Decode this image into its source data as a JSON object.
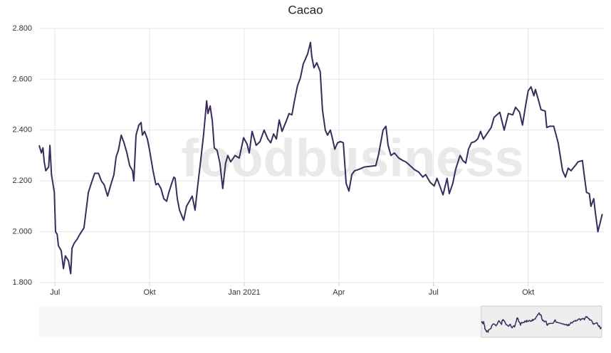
{
  "chart_data": {
    "type": "line",
    "title": "Cacao",
    "watermark": "foodbusiness",
    "x": [
      6.5,
      6.57,
      6.62,
      6.66,
      6.71,
      6.8,
      6.84,
      6.89,
      6.98,
      7.02,
      7.07,
      7.11,
      7.2,
      7.27,
      7.33,
      7.43,
      7.5,
      7.54,
      7.61,
      7.7,
      7.79,
      7.92,
      7.99,
      8.06,
      8.15,
      8.26,
      8.38,
      8.47,
      8.56,
      8.67,
      8.76,
      8.87,
      8.94,
      9.01,
      9.1,
      9.19,
      9.28,
      9.37,
      9.46,
      9.5,
      9.57,
      9.66,
      9.73,
      9.77,
      9.84,
      9.93,
      10.0,
      10.11,
      10.2,
      10.27,
      10.36,
      10.45,
      10.54,
      10.61,
      10.7,
      10.77,
      10.81,
      10.88,
      10.95,
      11.08,
      11.17,
      11.26,
      11.35,
      11.44,
      11.53,
      11.62,
      11.71,
      11.81,
      11.85,
      11.92,
      11.99,
      12.05,
      12.14,
      12.23,
      12.32,
      12.41,
      12.48,
      12.57,
      12.71,
      12.84,
      12.98,
      13.09,
      13.16,
      13.25,
      13.38,
      13.5,
      13.63,
      13.75,
      13.84,
      13.93,
      14.02,
      14.11,
      14.2,
      14.33,
      14.42,
      14.51,
      14.6,
      14.69,
      14.78,
      14.87,
      15.01,
      15.1,
      15.14,
      15.21,
      15.3,
      15.41,
      15.48,
      15.57,
      15.64,
      15.73,
      15.8,
      15.87,
      15.96,
      16.05,
      16.14,
      16.23,
      16.32,
      16.41,
      16.5,
      16.63,
      16.81,
      17.17,
      17.26,
      17.4,
      17.49,
      17.56,
      17.65,
      17.76,
      17.9,
      18.03,
      18.12,
      18.26,
      18.39,
      18.53,
      18.66,
      18.75,
      18.89,
      19.02,
      19.11,
      19.2,
      19.3,
      19.43,
      19.5,
      19.61,
      19.7,
      19.84,
      19.93,
      20.02,
      20.11,
      20.2,
      20.31,
      20.4,
      20.49,
      20.58,
      20.69,
      20.83,
      20.92,
      21.01,
      21.1,
      21.24,
      21.37,
      21.51,
      21.6,
      21.73,
      21.82,
      21.91,
      22.0,
      22.09,
      22.18,
      22.23,
      22.32,
      22.41,
      22.54,
      22.59,
      22.68,
      22.81,
      22.95,
      23.09,
      23.18,
      23.27,
      23.36,
      23.49,
      23.58,
      23.72,
      23.76,
      23.85,
      23.94,
      23.99,
      24.08,
      24.12,
      24.21,
      24.3,
      24.35
    ],
    "series": [
      {
        "name": "Cacao",
        "color": "#3a2b5c",
        "values": [
          2340,
          2310,
          2330,
          2275,
          2240,
          2255,
          2340,
          2225,
          2155,
          2000,
          1990,
          1945,
          1925,
          1855,
          1905,
          1885,
          1835,
          1935,
          1955,
          1970,
          1990,
          2015,
          2085,
          2155,
          2190,
          2230,
          2230,
          2200,
          2185,
          2140,
          2180,
          2225,
          2295,
          2320,
          2380,
          2350,
          2310,
          2260,
          2240,
          2200,
          2380,
          2420,
          2430,
          2380,
          2395,
          2365,
          2320,
          2240,
          2185,
          2190,
          2170,
          2130,
          2120,
          2155,
          2190,
          2215,
          2210,
          2130,
          2085,
          2045,
          2100,
          2120,
          2140,
          2085,
          2185,
          2280,
          2380,
          2515,
          2465,
          2495,
          2435,
          2330,
          2320,
          2270,
          2170,
          2270,
          2300,
          2275,
          2300,
          2290,
          2370,
          2345,
          2310,
          2395,
          2340,
          2355,
          2400,
          2365,
          2350,
          2385,
          2365,
          2440,
          2395,
          2435,
          2465,
          2460,
          2520,
          2575,
          2605,
          2660,
          2700,
          2745,
          2690,
          2645,
          2665,
          2630,
          2480,
          2400,
          2380,
          2400,
          2365,
          2325,
          2350,
          2355,
          2350,
          2190,
          2160,
          2225,
          2240,
          2245,
          2255,
          2260,
          2305,
          2400,
          2415,
          2340,
          2300,
          2310,
          2290,
          2280,
          2275,
          2260,
          2245,
          2235,
          2215,
          2225,
          2195,
          2180,
          2210,
          2180,
          2145,
          2210,
          2150,
          2190,
          2245,
          2300,
          2280,
          2270,
          2325,
          2350,
          2355,
          2365,
          2395,
          2365,
          2385,
          2410,
          2450,
          2460,
          2470,
          2400,
          2465,
          2460,
          2490,
          2470,
          2420,
          2490,
          2555,
          2570,
          2535,
          2560,
          2520,
          2480,
          2475,
          2410,
          2415,
          2415,
          2350,
          2240,
          2215,
          2250,
          2240,
          2260,
          2275,
          2280,
          2240,
          2155,
          2150,
          2100,
          2130,
          2085,
          2000,
          2045,
          2070
        ]
      }
    ],
    "xlim": [
      6.5,
      24.4
    ],
    "xticks": [
      {
        "value": 7,
        "label": "Jul"
      },
      {
        "value": 10,
        "label": "Okt"
      },
      {
        "value": 13,
        "label": "Jan 2021"
      },
      {
        "value": 16,
        "label": "Apr"
      },
      {
        "value": 19,
        "label": "Jul"
      },
      {
        "value": 22,
        "label": "Okt"
      }
    ],
    "ylim": [
      1800,
      2800
    ],
    "yticks": [
      {
        "value": 1800,
        "label": "1.800"
      },
      {
        "value": 2000,
        "label": "2.000"
      },
      {
        "value": 2200,
        "label": "2.200"
      },
      {
        "value": 2400,
        "label": "2.400"
      },
      {
        "value": 2600,
        "label": "2.600"
      },
      {
        "value": 2800,
        "label": "2.800"
      }
    ],
    "grid": true
  }
}
